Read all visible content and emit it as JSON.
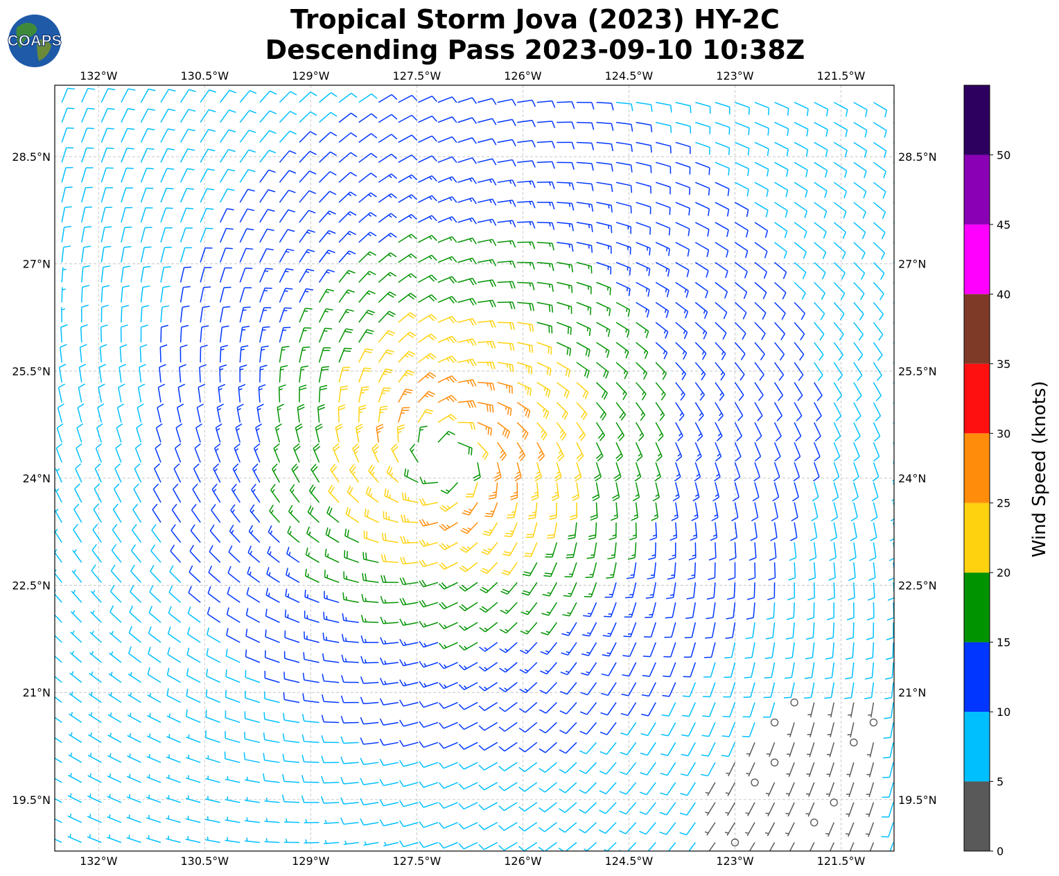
{
  "title": {
    "line1": "Tropical Storm Jova (2023) HY-2C",
    "line2": "Descending Pass 2023-09-10 10:38Z"
  },
  "logo": {
    "text": "COAPS",
    "icon": "globe-icon"
  },
  "map": {
    "lon_ticks": [
      {
        "value": -132.0,
        "label": "132°W"
      },
      {
        "value": -130.5,
        "label": "130.5°W"
      },
      {
        "value": -129.0,
        "label": "129°W"
      },
      {
        "value": -127.5,
        "label": "127.5°W"
      },
      {
        "value": -126.0,
        "label": "126°W"
      },
      {
        "value": -124.5,
        "label": "124.5°W"
      },
      {
        "value": -123.0,
        "label": "123°W"
      },
      {
        "value": -121.5,
        "label": "121.5°W"
      }
    ],
    "lat_ticks": [
      {
        "value": 28.5,
        "label": "28.5°N"
      },
      {
        "value": 27.0,
        "label": "27°N"
      },
      {
        "value": 25.5,
        "label": "25.5°N"
      },
      {
        "value": 24.0,
        "label": "24°N"
      },
      {
        "value": 22.5,
        "label": "22.5°N"
      },
      {
        "value": 21.0,
        "label": "21°N"
      },
      {
        "value": 19.5,
        "label": "19.5°N"
      }
    ],
    "lon_range": [
      -132.62,
      -120.75
    ],
    "lat_range": [
      18.78,
      29.5
    ],
    "grid": true,
    "storm_center": {
      "lon": -127.1,
      "lat": 24.3
    },
    "ring_speeds_knots": [
      {
        "radius_deg": 0.4,
        "speed": 17
      },
      {
        "radius_deg": 0.8,
        "speed": 27
      },
      {
        "radius_deg": 1.3,
        "speed": 24
      },
      {
        "radius_deg": 1.9,
        "speed": 20
      },
      {
        "radius_deg": 2.6,
        "speed": 16
      },
      {
        "radius_deg": 3.5,
        "speed": 13
      },
      {
        "radius_deg": 4.6,
        "speed": 10
      },
      {
        "radius_deg": 5.8,
        "speed": 8
      }
    ],
    "calm_region": {
      "lon_range": [
        -123.5,
        -120.9
      ],
      "lat_range": [
        18.8,
        21.0
      ]
    }
  },
  "colorbar": {
    "label": "Wind Speed (knots)",
    "bins": [
      0,
      5,
      10,
      15,
      20,
      25,
      30,
      35,
      40,
      45,
      50,
      55
    ],
    "tick_labels": [
      "0",
      "5",
      "10",
      "15",
      "20",
      "25",
      "30",
      "35",
      "40",
      "45",
      "50"
    ],
    "colors": [
      "#595959",
      "#00bfff",
      "#0036ff",
      "#009300",
      "#ffd20f",
      "#ff8c0a",
      "#ff1010",
      "#7f3a27",
      "#ff00ff",
      "#8a00b4",
      "#2d0060"
    ]
  }
}
